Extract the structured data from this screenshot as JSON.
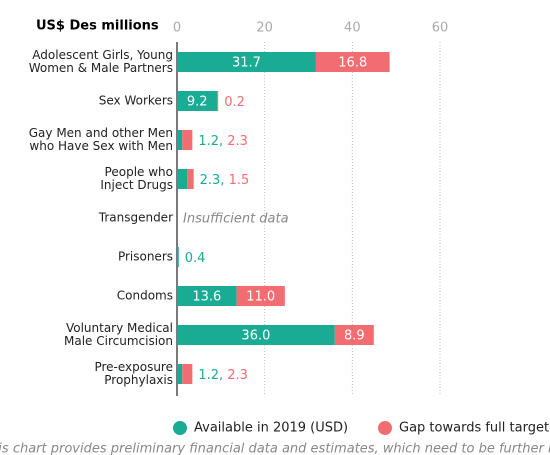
{
  "chart_data": {
    "type": "stacked-bar-horizontal",
    "title": "US$ Des millions",
    "categories": [
      "Adolescent Girls, Young\nWomen & Male Partners",
      "Sex Workers",
      "Gay Men and other Men\nwho Have Sex with Men",
      "People who\nInject Drugs",
      "Transgender",
      "Prisoners",
      "Condoms",
      "Voluntary Medical\nMale Circumcision",
      "Pre-exposure\nProphylaxis"
    ],
    "series": [
      {
        "name": "Available in 2019 (USD)",
        "color": "#1aab94",
        "values": [
          31.7,
          9.2,
          1.2,
          2.3,
          null,
          0.4,
          13.6,
          36.0,
          1.2
        ],
        "value_labels": [
          null,
          null,
          null,
          null,
          null,
          null,
          null,
          "36.0",
          null
        ]
      },
      {
        "name": "Gap towards full target",
        "color": "#f26d72",
        "values": [
          16.8,
          0.2,
          2.3,
          1.5,
          null,
          null,
          11.0,
          8.9,
          2.3
        ],
        "value_labels": [
          null,
          null,
          null,
          null,
          null,
          null,
          "11.0",
          null,
          null
        ]
      }
    ],
    "value_label_separator": ", ",
    "annotations": [
      {
        "category": 4,
        "text": "Insufficient data"
      }
    ],
    "xlim": [
      0,
      60
    ],
    "xticks": [
      0,
      20,
      40,
      60
    ],
    "grid": true,
    "footnote": "This chart provides preliminary financial data and estimates, which need to be further ref"
  }
}
